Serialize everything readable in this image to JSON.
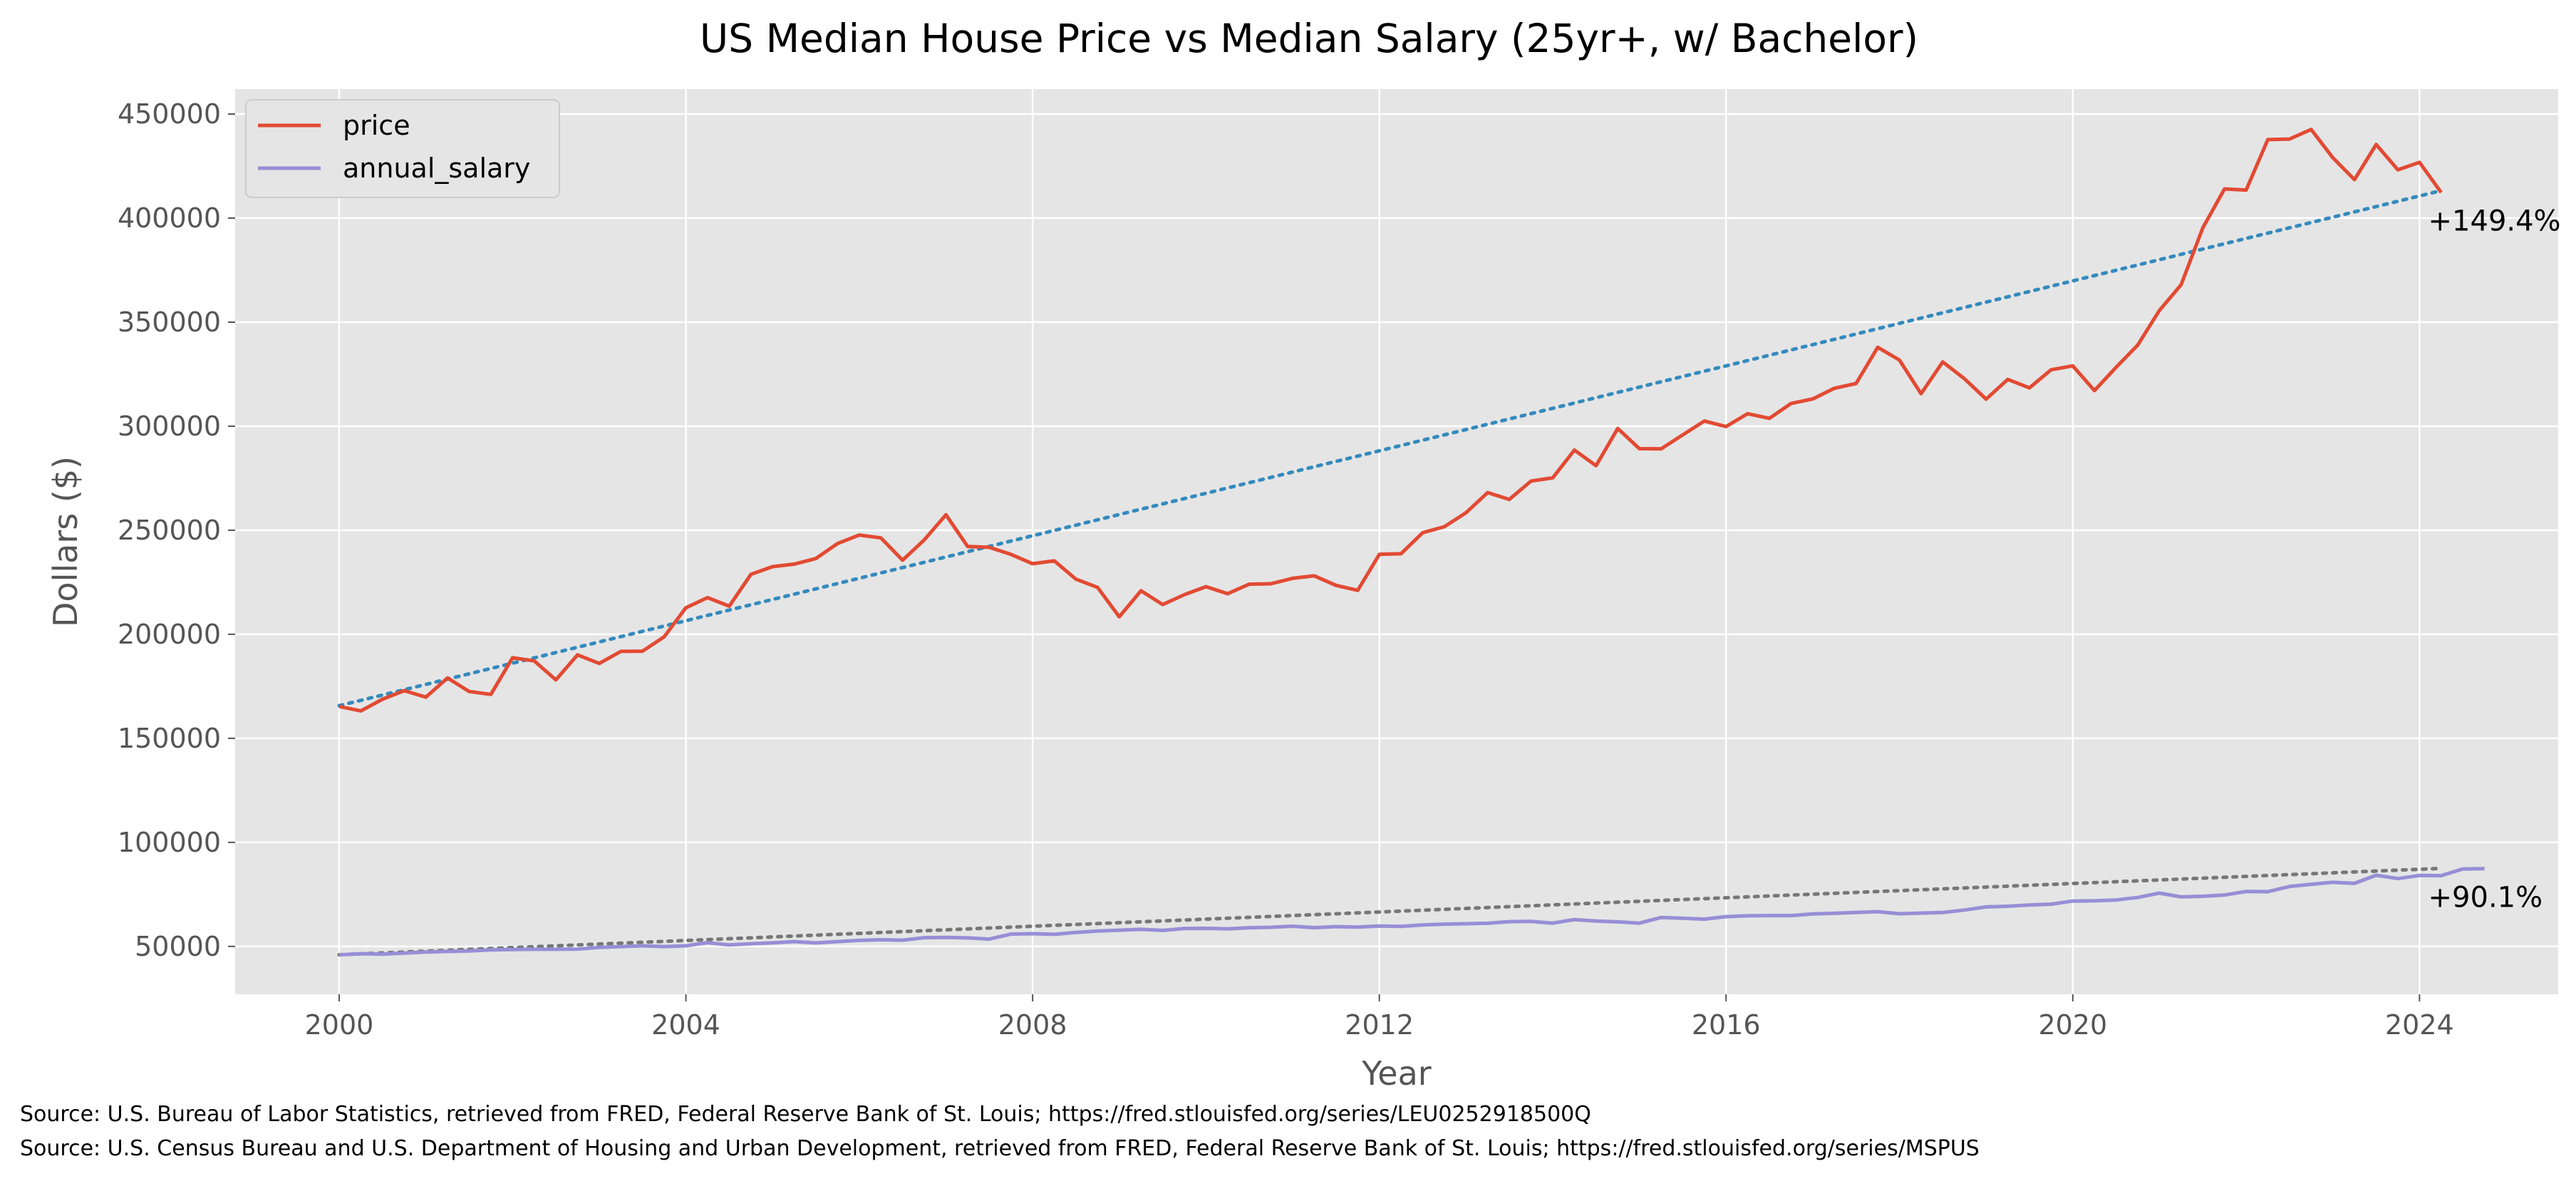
{
  "chart_data": {
    "type": "line",
    "title": "US Median House Price vs Median Salary (25yr+, w/ Bachelor)",
    "xlabel": "Year",
    "ylabel": "Dollars ($)",
    "xlim": [
      1998.8,
      2025.6
    ],
    "ylim": [
      27000,
      462000
    ],
    "x_ticks": [
      2000,
      2004,
      2008,
      2012,
      2016,
      2020,
      2024
    ],
    "y_ticks": [
      50000,
      100000,
      150000,
      200000,
      250000,
      300000,
      350000,
      400000,
      450000
    ],
    "grid": true,
    "legend_position": "top-left",
    "background_color": "#e5e5e5",
    "x_quarterly": {
      "start_year": 2000,
      "start_quarter": 1
    },
    "series": [
      {
        "name": "price",
        "color": "#e24a33",
        "values": [
          165300,
          163200,
          168800,
          172900,
          169800,
          179000,
          172500,
          171100,
          188700,
          187200,
          178100,
          190100,
          186000,
          191800,
          191900,
          198800,
          212700,
          217600,
          213500,
          228800,
          232500,
          233700,
          236400,
          243600,
          247700,
          246300,
          235600,
          245400,
          257400,
          242200,
          241800,
          238400,
          233900,
          235300,
          226500,
          222500,
          208400,
          220900,
          214300,
          219000,
          222900,
          219500,
          224100,
          224300,
          226900,
          228100,
          223500,
          221100,
          238400,
          238700,
          248800,
          251700,
          258400,
          268100,
          264800,
          273600,
          275200,
          288500,
          281000,
          298900,
          289200,
          289100,
          295800,
          302500,
          299800,
          306000,
          303800,
          310900,
          313100,
          318200,
          320500,
          337900,
          331800,
          315600,
          330900,
          322800,
          313000,
          322500,
          318400,
          327100,
          329000,
          317100,
          328300,
          339000,
          355600,
          368000,
          395300,
          414000,
          413500,
          437700,
          438000,
          442600,
          429000,
          418500,
          435400,
          423200,
          426800,
          412300
        ]
      },
      {
        "name": "annual_salary",
        "color": "#988ed5",
        "values": [
          45900,
          46500,
          46300,
          46800,
          47300,
          47600,
          47800,
          48300,
          48500,
          48600,
          48600,
          48700,
          49500,
          49900,
          50300,
          49900,
          50300,
          51800,
          50700,
          51300,
          51700,
          52300,
          51700,
          52300,
          52900,
          53200,
          53000,
          54200,
          54300,
          54100,
          53500,
          55900,
          56100,
          55800,
          56700,
          57400,
          57800,
          58200,
          57700,
          58600,
          58700,
          58400,
          59000,
          59200,
          59700,
          59000,
          59500,
          59300,
          59800,
          59600,
          60300,
          60700,
          60900,
          61100,
          61900,
          62000,
          61200,
          62900,
          62200,
          61800,
          61200,
          63900,
          63500,
          63100,
          64300,
          64700,
          64800,
          64800,
          65600,
          65900,
          66300,
          66700,
          65700,
          66000,
          66300,
          67500,
          69000,
          69300,
          69900,
          70300,
          71800,
          71900,
          72300,
          73500,
          75600,
          73800,
          74100,
          74700,
          76400,
          76300,
          78800,
          79800,
          80800,
          80300,
          84200,
          82600,
          84100,
          84000,
          87200,
          87400
        ]
      }
    ],
    "trendlines": [
      {
        "series": "price",
        "color": "#348abd",
        "from": [
          2000,
          165700
        ],
        "to": [
          2024.25,
          413200
        ]
      },
      {
        "series": "annual_salary",
        "color": "#777777",
        "from": [
          2000,
          46000
        ],
        "to": [
          2024.25,
          87500
        ]
      }
    ],
    "annotations": [
      {
        "text": "+149.4%",
        "x": 2024.1,
        "y": 394000
      },
      {
        "text": "+90.1%",
        "x": 2024.1,
        "y": 69000
      }
    ]
  },
  "footer": {
    "source_1": "Source: U.S. Bureau of Labor Statistics, retrieved from FRED, Federal Reserve Bank of St. Louis; https://fred.stlouisfed.org/series/LEU0252918500Q",
    "source_2": "Source: U.S. Census Bureau and U.S. Department of Housing and Urban Development, retrieved from FRED, Federal Reserve Bank of St. Louis; https://fred.stlouisfed.org/series/MSPUS"
  }
}
